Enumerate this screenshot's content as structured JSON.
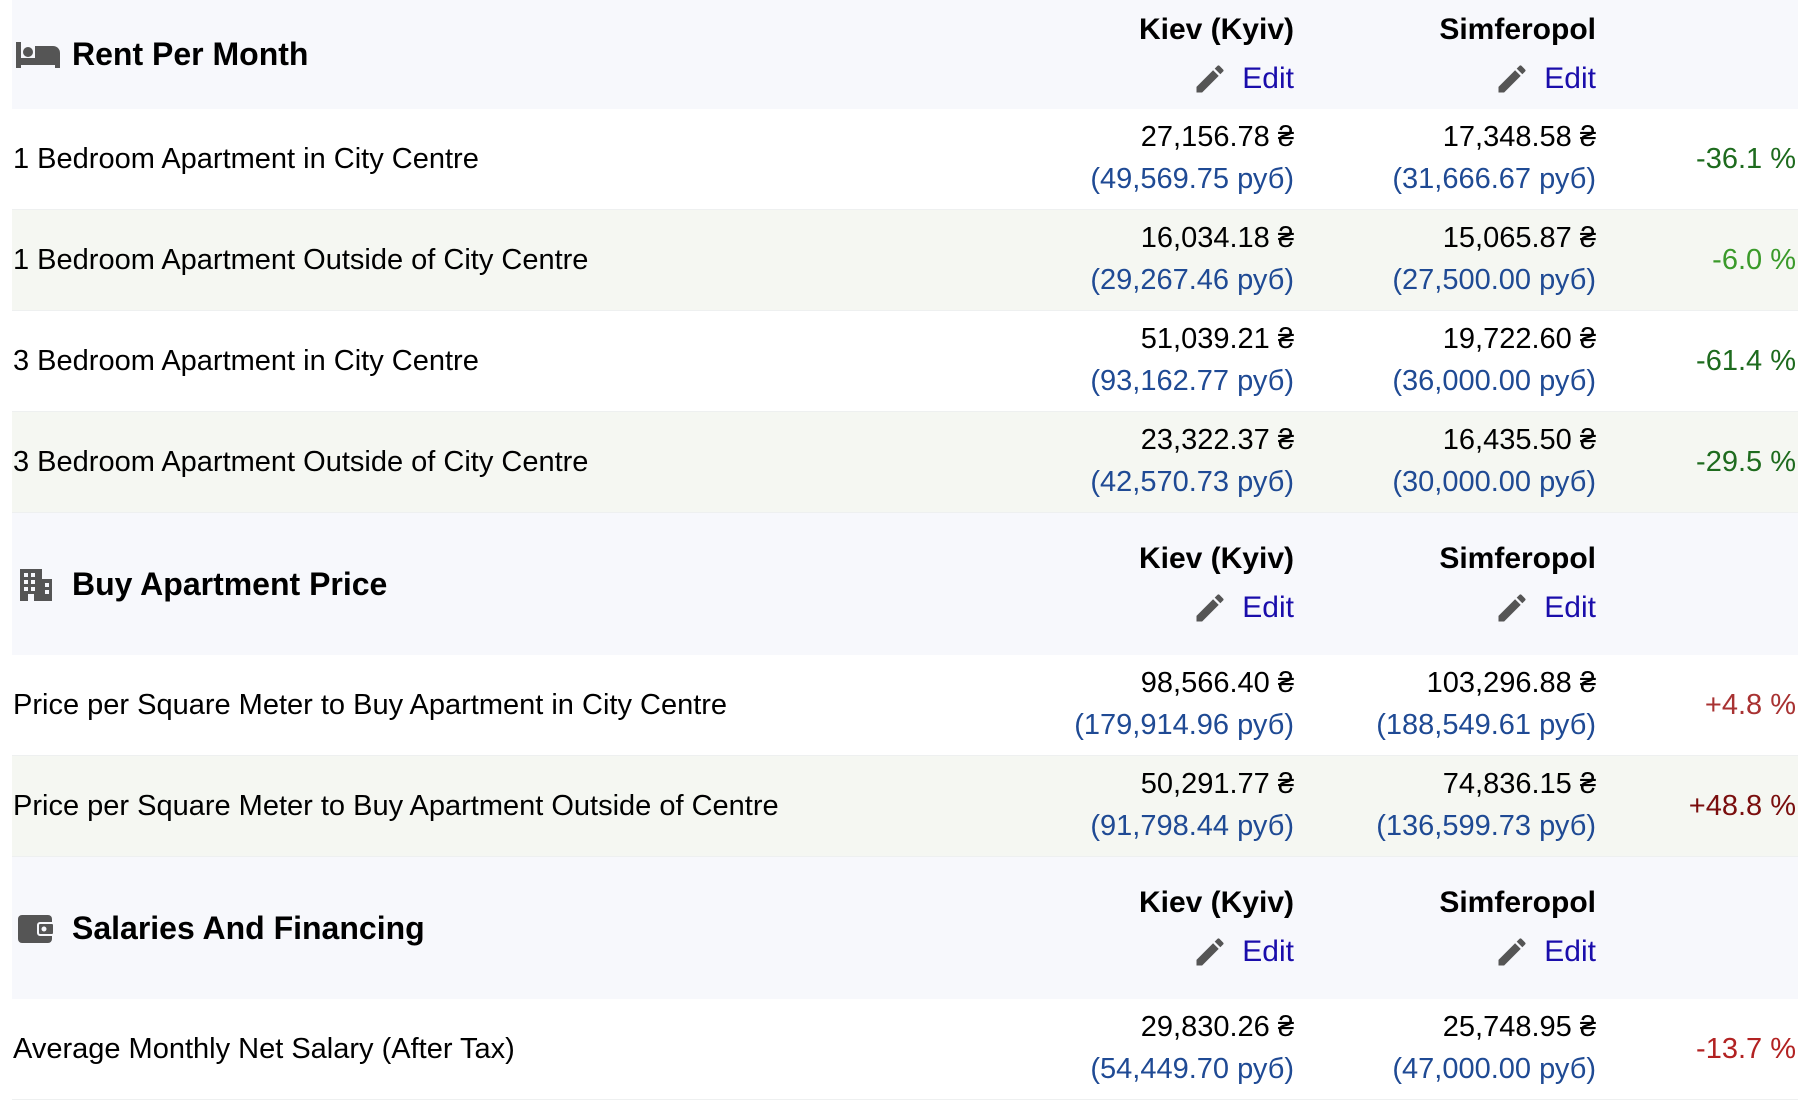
{
  "sections": [
    {
      "title": "Rent Per Month",
      "icon": "bed-icon",
      "city1": "Kiev (Kyiv)",
      "city2": "Simferopol",
      "edit_label": "Edit",
      "rows": [
        {
          "label": "1 Bedroom Apartment in City Centre",
          "v1": "27,156.78 ₴",
          "s1": "(49,569.75 руб)",
          "v2": "17,348.58 ₴",
          "s2": "(31,666.67 руб)",
          "pct": "-36.1 %",
          "color": "#1e6b1e"
        },
        {
          "label": "1 Bedroom Apartment Outside of City Centre",
          "v1": "16,034.18 ₴",
          "s1": "(29,267.46 руб)",
          "v2": "15,065.87 ₴",
          "s2": "(27,500.00 руб)",
          "pct": "-6.0 %",
          "color": "#3a9a2a"
        },
        {
          "label": "3 Bedroom Apartment in City Centre",
          "v1": "51,039.21 ₴",
          "s1": "(93,162.77 руб)",
          "v2": "19,722.60 ₴",
          "s2": "(36,000.00 руб)",
          "pct": "-61.4 %",
          "color": "#1e6b1e"
        },
        {
          "label": "3 Bedroom Apartment Outside of City Centre",
          "v1": "23,322.37 ₴",
          "s1": "(42,570.73 руб)",
          "v2": "16,435.50 ₴",
          "s2": "(30,000.00 руб)",
          "pct": "-29.5 %",
          "color": "#1e6b1e"
        }
      ]
    },
    {
      "title": "Buy Apartment Price",
      "icon": "building-icon",
      "city1": "Kiev (Kyiv)",
      "city2": "Simferopol",
      "edit_label": "Edit",
      "rows": [
        {
          "label": "Price per Square Meter to Buy Apartment in City Centre",
          "v1": "98,566.40 ₴",
          "s1": "(179,914.96 руб)",
          "v2": "103,296.88 ₴",
          "s2": "(188,549.61 руб)",
          "pct": "+4.8 %",
          "color": "#a83232"
        },
        {
          "label": "Price per Square Meter to Buy Apartment Outside of Centre",
          "v1": "50,291.77 ₴",
          "s1": "(91,798.44 руб)",
          "v2": "74,836.15 ₴",
          "s2": "(136,599.73 руб)",
          "pct": "+48.8 %",
          "color": "#7a0e0e"
        }
      ]
    },
    {
      "title": "Salaries And Financing",
      "icon": "wallet-icon",
      "city1": "Kiev (Kyiv)",
      "city2": "Simferopol",
      "edit_label": "Edit",
      "rows": [
        {
          "label": "Average Monthly Net Salary (After Tax)",
          "v1": "29,830.26 ₴",
          "s1": "(54,449.70 руб)",
          "v2": "25,748.95 ₴",
          "s2": "(47,000.00 руб)",
          "pct": "-13.7 %",
          "color": "#b22222"
        }
      ]
    }
  ]
}
